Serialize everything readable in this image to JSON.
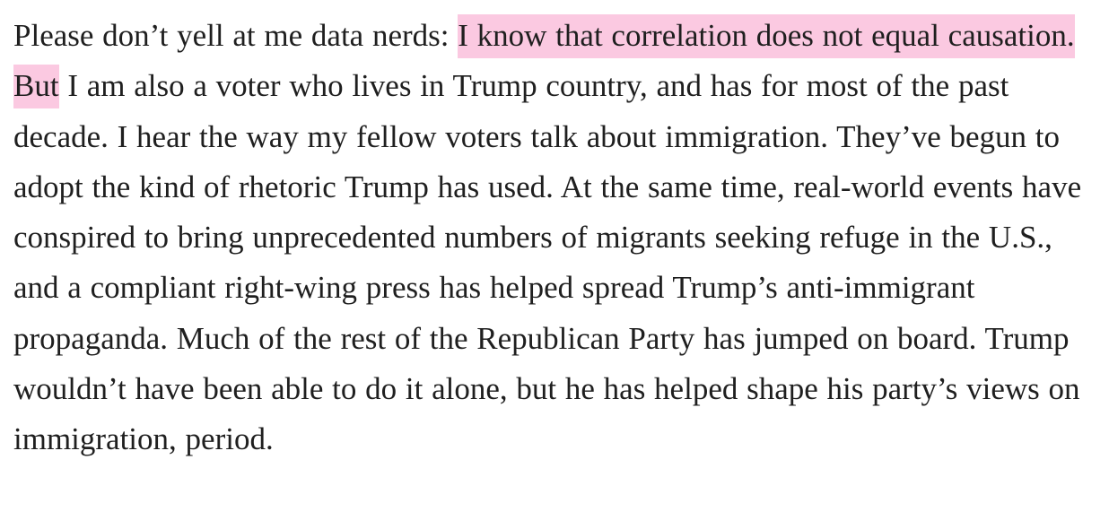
{
  "article": {
    "lead": "Please don’t yell at me data nerds: ",
    "highlight": "I know that correlation does not equal causation. But",
    "rest": " I am also a voter who lives in Trump country, and has for most of the past decade. I hear the way my fellow voters talk about immigration. They’ve begun to adopt the kind of rhetoric Trump has used. At the same time, real-world events have conspired to bring unprecedented numbers of migrants seeking refuge in the U.S., and a compliant right-wing press has helped spread Trump’s anti-immigrant propaganda. Much of the rest of the Republican Party has jumped on board. Trump wouldn’t have been able to do it alone, but he has helped shape his party’s views on immigration, period."
  },
  "colors": {
    "text": "#1f1f1f",
    "highlight": "#fbc9e1",
    "background": "#ffffff"
  }
}
